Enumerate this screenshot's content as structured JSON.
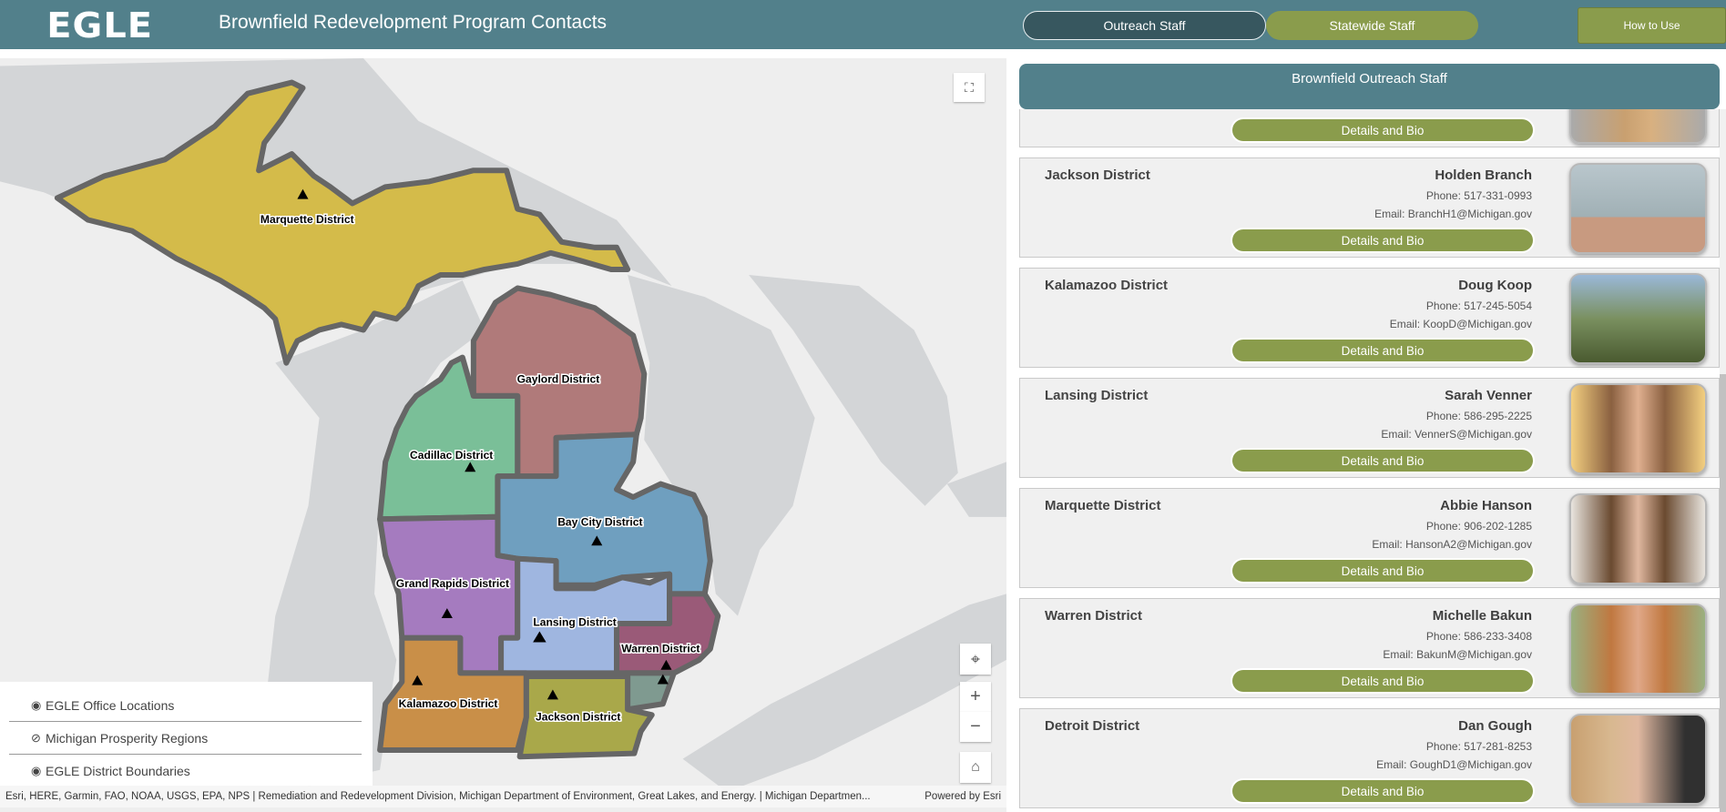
{
  "header": {
    "logo": "EGLE",
    "title": "Brownfield Redevelopment Program Contacts",
    "tabs": [
      {
        "label": "Outreach Staff",
        "active": true
      },
      {
        "label": "Statewide Staff",
        "active": false
      }
    ],
    "how_to_use": "How to Use"
  },
  "colors": {
    "header": "#52808b",
    "accent": "#8a9c4c",
    "active_tab": "#37575f"
  },
  "map": {
    "districts": [
      {
        "label": "Marquette District",
        "color": "#d4bb4a"
      },
      {
        "label": "Gaylord District",
        "color": "#b07a7a"
      },
      {
        "label": "Cadillac District",
        "color": "#7abf98"
      },
      {
        "label": "Bay City District",
        "color": "#6f9fbf"
      },
      {
        "label": "Grand Rapids District",
        "color": "#a57bbf"
      },
      {
        "label": "Lansing District",
        "color": "#9fb6e0"
      },
      {
        "label": "Warren District",
        "color": "#9a5a78"
      },
      {
        "label": "Kalamazoo District",
        "color": "#c98f48"
      },
      {
        "label": "Jackson District",
        "color": "#a9a84a"
      }
    ],
    "legend": [
      {
        "label": "EGLE Office Locations",
        "icon": "eye-icon"
      },
      {
        "label": "Michigan Prosperity Regions",
        "icon": "eye-off-icon"
      },
      {
        "label": "EGLE District Boundaries",
        "icon": "eye-icon"
      }
    ],
    "attribution": "Esri, HERE, Garmin, FAO, NOAA, USGS, EPA, NPS | Remediation and Redevelopment Division, Michigan Department of Environment, Great Lakes, and Energy. | Michigan Departmen...",
    "powered_by": "Powered by Esri",
    "controls": {
      "fullscreen": "fullscreen-icon",
      "locate": "locate-icon",
      "zoom_in": "+",
      "zoom_out": "−",
      "home": "home-icon"
    }
  },
  "panel": {
    "title": "Brownfield Outreach Staff",
    "button_label": "Details and Bio",
    "staff": [
      {
        "district": "",
        "name": "",
        "phone": "",
        "email": ""
      },
      {
        "district": "Jackson District",
        "name": "Holden Branch",
        "phone": "Phone: 517-331-0993",
        "email": "Email: BranchH1@Michigan.gov"
      },
      {
        "district": "Kalamazoo District",
        "name": "Doug Koop",
        "phone": "Phone: 517-245-5054",
        "email": "Email: KoopD@Michigan.gov"
      },
      {
        "district": "Lansing District",
        "name": "Sarah Venner",
        "phone": "Phone: 586-295-2225",
        "email": "Email: VennerS@Michigan.gov"
      },
      {
        "district": "Marquette District",
        "name": "Abbie Hanson",
        "phone": "Phone: 906-202-1285",
        "email": "Email: HansonA2@Michigan.gov"
      },
      {
        "district": "Warren District",
        "name": "Michelle Bakun",
        "phone": "Phone: 586-233-3408",
        "email": "Email: BakunM@Michigan.gov"
      },
      {
        "district": "Detroit District",
        "name": "Dan Gough",
        "phone": "Phone: 517-281-8253",
        "email": "Email: GoughD1@Michigan.gov"
      }
    ]
  }
}
